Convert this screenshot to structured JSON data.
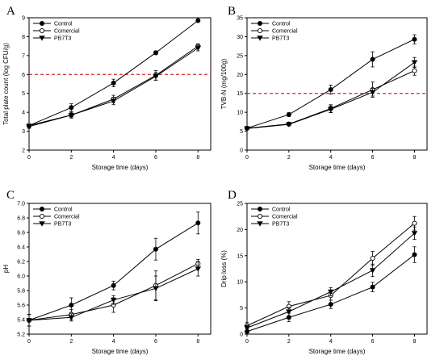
{
  "legend": {
    "control": "Control",
    "commercial": "Comercial",
    "pb7t3": "PB7T3"
  },
  "colors": {
    "threshold": "#d62728",
    "ink": "#000000"
  },
  "chart_data": [
    {
      "id": "A",
      "type": "line",
      "panel_label": "A",
      "xlabel": "Storage time (days)",
      "ylabel": "Total plate count (log CFU/g)",
      "x": [
        0,
        2,
        4,
        6,
        8
      ],
      "xlim": [
        0,
        8.6
      ],
      "xticks": [
        0,
        2,
        4,
        6,
        8
      ],
      "ylim": [
        2,
        9
      ],
      "yticks": [
        2,
        3,
        4,
        5,
        6,
        7,
        8,
        9
      ],
      "threshold": 6,
      "legend_position": "top-left",
      "series": [
        {
          "name": "Control",
          "marker": "circle-filled",
          "values": [
            3.3,
            4.25,
            5.55,
            7.15,
            8.85
          ],
          "errors": [
            0.1,
            0.2,
            0.2,
            0.1,
            0.07
          ]
        },
        {
          "name": "Comercial",
          "marker": "circle-open",
          "values": [
            3.3,
            3.85,
            4.7,
            5.95,
            7.5
          ],
          "errors": [
            0.1,
            0.15,
            0.2,
            0.25,
            0.12
          ]
        },
        {
          "name": "PB7T3",
          "marker": "triangle-down",
          "values": [
            3.25,
            3.85,
            4.6,
            5.9,
            7.4
          ],
          "errors": [
            0.1,
            0.15,
            0.2,
            0.2,
            0.15
          ]
        }
      ]
    },
    {
      "id": "B",
      "type": "line",
      "panel_label": "B",
      "xlabel": "Storage time (days)",
      "ylabel": "TVB-N (mg/100g)",
      "x": [
        0,
        2,
        4,
        6,
        8
      ],
      "xlim": [
        0,
        8.6
      ],
      "xticks": [
        0,
        2,
        4,
        6,
        8
      ],
      "ylim": [
        0,
        35
      ],
      "yticks": [
        0,
        5,
        10,
        15,
        20,
        25,
        30,
        35
      ],
      "threshold": 15,
      "legend_position": "top-left",
      "series": [
        {
          "name": "Control",
          "marker": "circle-filled",
          "values": [
            5.8,
            9.4,
            16,
            24,
            29.3
          ],
          "errors": [
            0.3,
            0.5,
            1.2,
            2,
            1.2
          ]
        },
        {
          "name": "Comercial",
          "marker": "circle-open",
          "values": [
            5.8,
            6.9,
            11,
            16,
            21
          ],
          "errors": [
            0.3,
            0.4,
            1,
            2,
            1.2
          ]
        },
        {
          "name": "PB7T3",
          "marker": "triangle-down",
          "values": [
            5.7,
            6.8,
            10.8,
            15.3,
            23.2
          ],
          "errors": [
            0.3,
            0.4,
            0.9,
            1,
            1.3
          ]
        }
      ]
    },
    {
      "id": "C",
      "type": "line",
      "panel_label": "C",
      "xlabel": "Storage time (days)",
      "ylabel": "pH",
      "x": [
        0,
        2,
        4,
        6,
        8
      ],
      "xlim": [
        0,
        8.6
      ],
      "xticks": [
        0,
        2,
        4,
        6,
        8
      ],
      "ylim": [
        5.2,
        7.0
      ],
      "yticks": [
        5.2,
        5.4,
        5.6,
        5.8,
        6.0,
        6.2,
        6.4,
        6.6,
        6.8,
        7.0
      ],
      "tick_decimals": 1,
      "legend_position": "top-left",
      "series": [
        {
          "name": "Control",
          "marker": "circle-filled",
          "values": [
            5.39,
            5.6,
            5.87,
            6.37,
            6.73
          ],
          "errors": [
            0.08,
            0.1,
            0.06,
            0.15,
            0.15
          ]
        },
        {
          "name": "Comercial",
          "marker": "circle-open",
          "values": [
            5.39,
            5.47,
            5.6,
            5.87,
            6.17
          ],
          "errors": [
            0.08,
            0.07,
            0.1,
            0.2,
            0.06
          ]
        },
        {
          "name": "PB7T3",
          "marker": "triangle-down",
          "values": [
            5.39,
            5.43,
            5.67,
            5.83,
            6.1
          ],
          "errors": [
            0.08,
            0.05,
            0.06,
            0.17,
            0.1
          ]
        }
      ]
    },
    {
      "id": "D",
      "type": "line",
      "panel_label": "D",
      "xlabel": "Storage time (days)",
      "ylabel": "Drip loss (%)",
      "x": [
        0,
        2,
        4,
        6,
        8
      ],
      "xlim": [
        0,
        8.6
      ],
      "xticks": [
        0,
        2,
        4,
        6,
        8
      ],
      "ylim": [
        0,
        25
      ],
      "yticks": [
        0,
        5,
        10,
        15,
        20,
        25
      ],
      "legend_position": "top-left",
      "series": [
        {
          "name": "Control",
          "marker": "circle-filled",
          "values": [
            0.5,
            3.2,
            5.7,
            9,
            15.2
          ],
          "errors": [
            0.5,
            0.8,
            0.8,
            0.9,
            1.5
          ]
        },
        {
          "name": "Comercial",
          "marker": "circle-open",
          "values": [
            1.6,
            5.3,
            7.4,
            14.5,
            21.2
          ],
          "errors": [
            0.6,
            0.9,
            0.9,
            1.3,
            1.3
          ]
        },
        {
          "name": "PB7T3",
          "marker": "triangle-down",
          "values": [
            1.2,
            4.3,
            8.1,
            12.2,
            19.3
          ],
          "errors": [
            0.5,
            0.8,
            0.8,
            1.2,
            1.2
          ]
        }
      ]
    }
  ]
}
